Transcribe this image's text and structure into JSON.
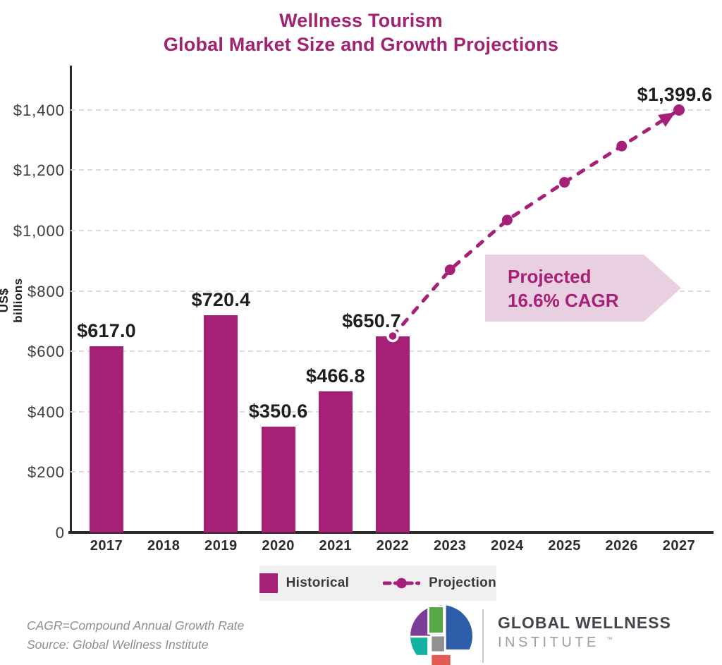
{
  "title": {
    "line1": "Wellness Tourism",
    "line2": "Global Market Size and Growth Projections"
  },
  "colors": {
    "accent": "#a62077",
    "title_text": "#a02372",
    "banner_bg": "#e9d0e0",
    "axis": "#2b2a28",
    "gridline": "#dcdcdc",
    "value_label": "#1e1e1e",
    "legend_bg": "#f1f0f1",
    "footer_text": "#8e8e8e"
  },
  "chart_data": {
    "type": "bar",
    "title": "Wellness Tourism Global Market Size and Growth Projections",
    "xlabel": "",
    "ylabel": "US$ billions",
    "ylim": [
      0,
      1530
    ],
    "grid": true,
    "categories": [
      "2017",
      "2018",
      "2019",
      "2020",
      "2021",
      "2022",
      "2023",
      "2024",
      "2025",
      "2026",
      "2027"
    ],
    "y_ticks": [
      {
        "value": 1400,
        "label": "$1,400"
      },
      {
        "value": 1200,
        "label": "$1,200"
      },
      {
        "value": 1000,
        "label": "$1,000"
      },
      {
        "value": 800,
        "label": "$800"
      },
      {
        "value": 600,
        "label": "$600"
      },
      {
        "value": 400,
        "label": "$400"
      },
      {
        "value": 200,
        "label": "$200"
      },
      {
        "value": 0,
        "label": "0"
      }
    ],
    "series": [
      {
        "name": "Historical",
        "style": "bar",
        "points": [
          {
            "x": "2017",
            "y": 617.0,
            "label": "$617.0"
          },
          {
            "x": "2019",
            "y": 720.4,
            "label": "$720.4"
          },
          {
            "x": "2020",
            "y": 350.6,
            "label": "$350.6"
          },
          {
            "x": "2021",
            "y": 466.8,
            "label": "$466.8"
          },
          {
            "x": "2022",
            "y": 650.7,
            "label": "$650.7"
          }
        ]
      },
      {
        "name": "Projection",
        "style": "dashed-line-with-dots-and-arrow",
        "points": [
          {
            "x": "2022",
            "y": 650.7
          },
          {
            "x": "2023",
            "y": 870
          },
          {
            "x": "2024",
            "y": 1035
          },
          {
            "x": "2025",
            "y": 1160
          },
          {
            "x": "2026",
            "y": 1280
          },
          {
            "x": "2027",
            "y": 1399.6,
            "label": "$1,399.6"
          }
        ]
      }
    ],
    "annotation": {
      "line1": "Projected",
      "line2": "16.6% CAGR"
    },
    "legend_position": "bottom-center"
  },
  "legend": {
    "historical_label": "Historical",
    "projection_label": "Projection"
  },
  "footer": {
    "note": "CAGR=Compound Annual Growth Rate",
    "source": "Source: Global Wellness Institute"
  },
  "logo": {
    "name": "GLOBAL WELLNESS",
    "subname": "INSTITUTE",
    "trademark": "™",
    "mark_colors": {
      "purple": "#7c3d96",
      "green": "#57a845",
      "blue": "#2d5da8",
      "teal": "#16b2a1",
      "gray": "#909192",
      "red": "#e25c55"
    }
  }
}
